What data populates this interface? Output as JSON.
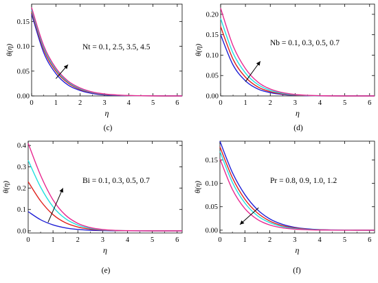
{
  "colors": {
    "c1": "#1f1fd6",
    "c2": "#e0201b",
    "c3": "#20e0e0",
    "c4": "#e8268f"
  },
  "chart_data": [
    {
      "type": "line",
      "caption": "(c)",
      "xlabel": "η",
      "ylabel": "θ(η)",
      "xlim": [
        0,
        6.2
      ],
      "ylim": [
        0,
        0.185
      ],
      "xticks": [
        0,
        1,
        2,
        3,
        4,
        5,
        6
      ],
      "yticks": [
        0.0,
        0.05,
        0.1,
        0.15
      ],
      "ytick_labels": [
        "0.00",
        "0.05",
        "0.10",
        "0.15"
      ],
      "annotation": "Nt = 0.1, 2.5, 3.5, 4.5",
      "arrow": {
        "from": [
          1.0,
          0.035
        ],
        "to": [
          1.5,
          0.063
        ]
      },
      "x": [
        0,
        0.5,
        1,
        1.5,
        2,
        2.5,
        3,
        3.5,
        4,
        4.5,
        5,
        5.5,
        6,
        6.2
      ],
      "series": [
        {
          "values": [
            0.165,
            0.087,
            0.045,
            0.022,
            0.011,
            0.005,
            0.002,
            0.001,
            0.0005,
            0.0002,
            0.0001,
            0,
            0,
            0
          ]
        },
        {
          "values": [
            0.17,
            0.093,
            0.05,
            0.026,
            0.013,
            0.0065,
            0.003,
            0.0015,
            0.0007,
            0.0003,
            0.0001,
            0,
            0,
            0
          ]
        },
        {
          "values": [
            0.174,
            0.097,
            0.053,
            0.028,
            0.0145,
            0.0072,
            0.0035,
            0.0017,
            0.0008,
            0.0004,
            0.0002,
            0.0001,
            0,
            0
          ]
        },
        {
          "values": [
            0.178,
            0.101,
            0.056,
            0.03,
            0.016,
            0.008,
            0.004,
            0.002,
            0.0009,
            0.0004,
            0.0002,
            0.0001,
            0,
            0
          ]
        }
      ]
    },
    {
      "type": "line",
      "caption": "(d)",
      "xlabel": "η",
      "ylabel": "θ(η)",
      "xlim": [
        0,
        6.2
      ],
      "ylim": [
        0,
        0.225
      ],
      "xticks": [
        0,
        1,
        2,
        3,
        4,
        5,
        6
      ],
      "yticks": [
        0.0,
        0.05,
        0.1,
        0.15,
        0.2
      ],
      "ytick_labels": [
        "0.00",
        "0.05",
        "0.10",
        "0.15",
        "0.20"
      ],
      "annotation": "Nb = 0.1, 0.3, 0.5, 0.7",
      "arrow": {
        "from": [
          1.0,
          0.035
        ],
        "to": [
          1.6,
          0.085
        ]
      },
      "x": [
        0,
        0.5,
        1,
        1.5,
        2,
        2.5,
        3,
        3.5,
        4,
        4.5,
        5,
        5.5,
        6,
        6.2
      ],
      "series": [
        {
          "values": [
            0.15,
            0.076,
            0.037,
            0.017,
            0.008,
            0.0035,
            0.0015,
            0.0006,
            0.0002,
            0.0001,
            0,
            0,
            0,
            0
          ]
        },
        {
          "values": [
            0.17,
            0.09,
            0.046,
            0.022,
            0.0105,
            0.0048,
            0.0021,
            0.0009,
            0.0004,
            0.0001,
            0,
            0,
            0,
            0
          ]
        },
        {
          "values": [
            0.19,
            0.105,
            0.056,
            0.028,
            0.0135,
            0.0063,
            0.0028,
            0.0012,
            0.0005,
            0.0002,
            0.0001,
            0,
            0,
            0
          ]
        },
        {
          "values": [
            0.215,
            0.123,
            0.067,
            0.034,
            0.017,
            0.008,
            0.0036,
            0.0015,
            0.0006,
            0.0002,
            0.0001,
            0,
            0,
            0
          ]
        }
      ]
    },
    {
      "type": "line",
      "caption": "(e)",
      "xlabel": "η",
      "ylabel": "θ(η)",
      "xlim": [
        0,
        6.2
      ],
      "ylim": [
        -0.01,
        0.42
      ],
      "xticks": [
        0,
        1,
        2,
        3,
        4,
        5,
        6
      ],
      "yticks": [
        0.0,
        0.1,
        0.2,
        0.3,
        0.4
      ],
      "ytick_labels": [
        "0.0",
        "0.1",
        "0.2",
        "0.3",
        "0.4"
      ],
      "annotation": "Bi = 0.1, 0.3, 0.5, 0.7",
      "arrow": {
        "from": [
          0.8,
          0.04
        ],
        "to": [
          1.4,
          0.2
        ]
      },
      "x": [
        0,
        0.5,
        1,
        1.5,
        2,
        2.5,
        3,
        3.5,
        4,
        4.5,
        5,
        5.5,
        6,
        6.2
      ],
      "series": [
        {
          "values": [
            0.09,
            0.052,
            0.028,
            0.014,
            0.0065,
            0.0028,
            0.0011,
            0.0004,
            0.0001,
            0,
            0,
            0,
            0,
            0
          ]
        },
        {
          "values": [
            0.23,
            0.14,
            0.076,
            0.038,
            0.018,
            0.008,
            0.0032,
            0.0012,
            0.0004,
            0.0001,
            0,
            0,
            0,
            0
          ]
        },
        {
          "values": [
            0.33,
            0.205,
            0.113,
            0.057,
            0.027,
            0.012,
            0.0048,
            0.0018,
            0.0006,
            0.0002,
            0,
            0,
            0,
            0
          ]
        },
        {
          "values": [
            0.41,
            0.26,
            0.145,
            0.074,
            0.035,
            0.0155,
            0.0063,
            0.0024,
            0.0008,
            0.0002,
            0,
            0,
            0,
            0
          ]
        }
      ]
    },
    {
      "type": "line",
      "caption": "(f)",
      "xlabel": "η",
      "ylabel": "θ(η)",
      "xlim": [
        0,
        6.2
      ],
      "ylim": [
        -0.006,
        0.19
      ],
      "xticks": [
        0,
        1,
        2,
        3,
        4,
        5,
        6
      ],
      "yticks": [
        0.0,
        0.05,
        0.1,
        0.15
      ],
      "ytick_labels": [
        "0.00",
        "0.05",
        "0.10",
        "0.15"
      ],
      "annotation": "Pr = 0.8, 0.9, 1.0, 1.2",
      "arrow": {
        "from": [
          1.55,
          0.048
        ],
        "to": [
          0.8,
          0.012
        ]
      },
      "x": [
        0,
        0.5,
        1,
        1.5,
        2,
        2.5,
        3,
        3.5,
        4,
        4.5,
        5,
        5.5,
        6,
        6.2
      ],
      "series": [
        {
          "values": [
            0.19,
            0.123,
            0.076,
            0.044,
            0.024,
            0.0125,
            0.006,
            0.0028,
            0.0012,
            0.0005,
            0.0002,
            0.0001,
            0,
            0
          ]
        },
        {
          "values": [
            0.178,
            0.112,
            0.066,
            0.037,
            0.0195,
            0.0097,
            0.0046,
            0.002,
            0.0008,
            0.0003,
            0.0001,
            0,
            0,
            0
          ]
        },
        {
          "values": [
            0.168,
            0.102,
            0.058,
            0.031,
            0.016,
            0.0077,
            0.0035,
            0.0015,
            0.0006,
            0.0002,
            0.0001,
            0,
            0,
            0
          ]
        },
        {
          "values": [
            0.152,
            0.087,
            0.046,
            0.023,
            0.011,
            0.005,
            0.0021,
            0.0009,
            0.0003,
            0.0001,
            0,
            0,
            0,
            0
          ]
        }
      ]
    }
  ]
}
